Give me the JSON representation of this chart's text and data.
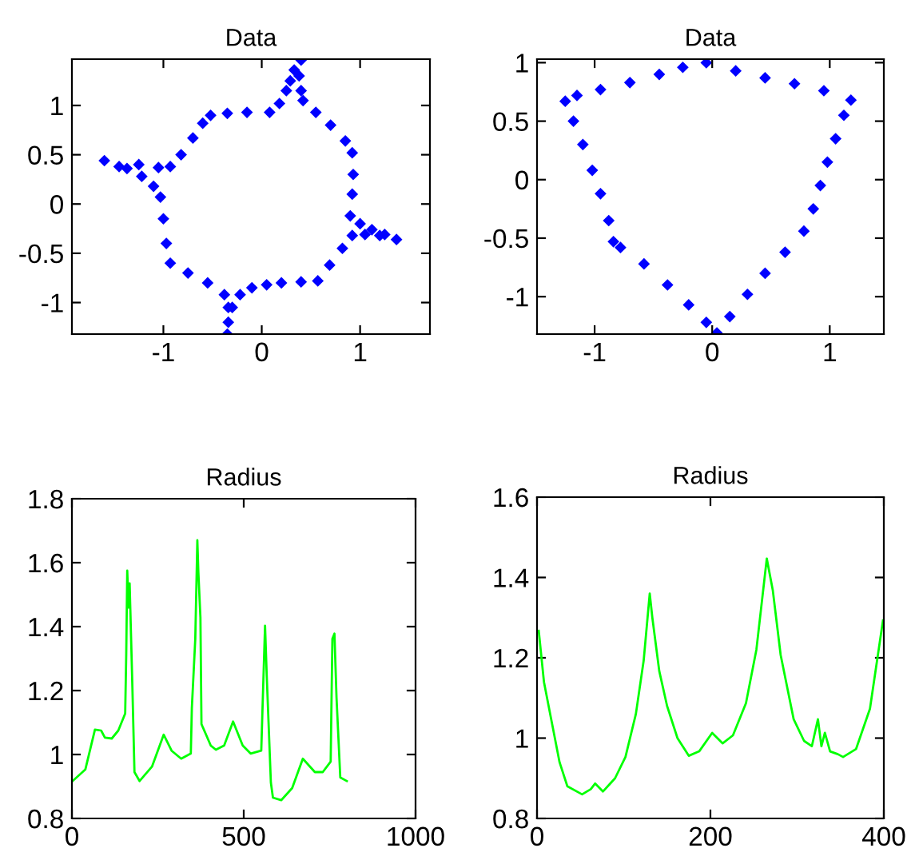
{
  "chart_data": [
    {
      "type": "scatter",
      "title": "Data",
      "marker": "diamond",
      "xlim": [
        -1.93,
        1.71
      ],
      "ylim": [
        -1.32,
        1.47
      ],
      "xticks": [
        -1,
        0,
        1
      ],
      "yticks": [
        -1,
        -0.5,
        0,
        0.5,
        1
      ],
      "series": [
        {
          "color": "#0000ff",
          "x": [
            0.4,
            0.38,
            0.4,
            0.42,
            0.55,
            0.7,
            0.85,
            0.92,
            0.93,
            0.92,
            0.9,
            1.0,
            1.12,
            1.25,
            1.37,
            1.2,
            1.05,
            0.92,
            0.82,
            0.69,
            0.57,
            0.4,
            0.2,
            0.05,
            -0.1,
            -0.22,
            -0.3,
            -0.34,
            -0.35,
            -0.34,
            -0.38,
            -0.55,
            -0.75,
            -0.93,
            -0.97,
            -1.0,
            -1.03,
            -1.1,
            -1.22,
            -1.37,
            -1.6,
            -1.45,
            -1.25,
            -1.05,
            -0.93,
            -0.82,
            -0.7,
            -0.6,
            -0.52,
            -0.35,
            -0.15,
            0.08,
            0.18,
            0.25,
            0.29,
            0.33
          ],
          "values": [
            1.46,
            1.3,
            1.15,
            1.05,
            0.93,
            0.8,
            0.64,
            0.52,
            0.3,
            0.1,
            -0.12,
            -0.2,
            -0.26,
            -0.31,
            -0.36,
            -0.32,
            -0.31,
            -0.32,
            -0.45,
            -0.62,
            -0.78,
            -0.79,
            -0.8,
            -0.82,
            -0.85,
            -0.92,
            -1.05,
            -1.2,
            -1.32,
            -1.05,
            -0.92,
            -0.8,
            -0.7,
            -0.6,
            -0.4,
            -0.15,
            0.07,
            0.18,
            0.28,
            0.36,
            0.44,
            0.38,
            0.4,
            0.37,
            0.38,
            0.5,
            0.67,
            0.82,
            0.9,
            0.92,
            0.93,
            0.93,
            1.02,
            1.15,
            1.25,
            1.36
          ]
        }
      ]
    },
    {
      "type": "scatter",
      "title": "Data",
      "marker": "diamond",
      "xlim": [
        -1.49,
        1.46
      ],
      "ylim": [
        -1.32,
        1.03
      ],
      "xticks": [
        -1,
        0,
        1
      ],
      "yticks": [
        -1,
        -0.5,
        0,
        0.5,
        1
      ],
      "series": [
        {
          "color": "#0000ff",
          "x": [
            -0.05,
            0.2,
            0.45,
            0.7,
            0.95,
            1.18,
            1.12,
            1.05,
            0.98,
            0.92,
            0.86,
            0.78,
            0.62,
            0.45,
            0.3,
            0.15,
            0.04,
            -0.05,
            -0.2,
            -0.38,
            -0.58,
            -0.78,
            -0.84,
            -0.88,
            -0.95,
            -1.02,
            -1.1,
            -1.18,
            -1.25,
            -1.15,
            -0.95,
            -0.7,
            -0.45,
            -0.25
          ],
          "values": [
            1.0,
            0.93,
            0.87,
            0.82,
            0.76,
            0.68,
            0.55,
            0.35,
            0.15,
            -0.05,
            -0.25,
            -0.44,
            -0.62,
            -0.8,
            -0.98,
            -1.17,
            -1.31,
            -1.22,
            -1.07,
            -0.9,
            -0.72,
            -0.58,
            -0.53,
            -0.35,
            -0.12,
            0.08,
            0.3,
            0.5,
            0.67,
            0.72,
            0.77,
            0.83,
            0.9,
            0.96
          ]
        }
      ]
    },
    {
      "type": "line",
      "title": "Radius",
      "xlim": [
        0,
        1000
      ],
      "ylim": [
        0.8,
        1.8
      ],
      "xticks": [
        0,
        500,
        1000
      ],
      "yticks": [
        0.8,
        1,
        1.2,
        1.4,
        1.6,
        1.8
      ],
      "series": [
        {
          "color": "#00ff00",
          "x": [
            0,
            39,
            67,
            85,
            96,
            116,
            135,
            155,
            158,
            161,
            165,
            168,
            176,
            182,
            197,
            233,
            267,
            290,
            318,
            346,
            349,
            359,
            365,
            368,
            374,
            377,
            404,
            419,
            443,
            469,
            497,
            520,
            551,
            554,
            562,
            567,
            579,
            585,
            609,
            641,
            672,
            707,
            730,
            753,
            758,
            764,
            770,
            781,
            800
          ],
          "values": [
            0.915,
            0.953,
            1.078,
            1.075,
            1.053,
            1.05,
            1.075,
            1.128,
            1.31,
            1.575,
            1.46,
            1.535,
            1.21,
            0.945,
            0.917,
            0.962,
            1.062,
            1.012,
            0.987,
            1.003,
            1.145,
            1.362,
            1.67,
            1.57,
            1.428,
            1.095,
            1.028,
            1.015,
            1.028,
            1.103,
            1.028,
            1.003,
            1.012,
            1.12,
            1.403,
            1.245,
            0.912,
            0.865,
            0.857,
            0.895,
            0.987,
            0.945,
            0.945,
            0.978,
            1.362,
            1.378,
            1.178,
            0.928,
            0.917
          ]
        }
      ]
    },
    {
      "type": "line",
      "title": "Radius",
      "xlim": [
        0,
        400
      ],
      "ylim": [
        0.8,
        1.6
      ],
      "xticks": [
        0,
        200,
        400
      ],
      "yticks": [
        0.8,
        1,
        1.2,
        1.4,
        1.6
      ],
      "series": [
        {
          "color": "#00ff00",
          "x": [
            2,
            8,
            17,
            26,
            35,
            52,
            62,
            67,
            76,
            90,
            102,
            114,
            123,
            130,
            133,
            141,
            150,
            162,
            175,
            187,
            202,
            214,
            226,
            241,
            253,
            265,
            272,
            281,
            296,
            308,
            317,
            324,
            328,
            332,
            338,
            347,
            353,
            368,
            384,
            399
          ],
          "values": [
            1.267,
            1.14,
            1.04,
            0.94,
            0.88,
            0.86,
            0.873,
            0.887,
            0.867,
            0.9,
            0.953,
            1.06,
            1.193,
            1.36,
            1.3,
            1.167,
            1.08,
            1.0,
            0.956,
            0.967,
            1.013,
            0.987,
            1.007,
            1.087,
            1.22,
            1.447,
            1.367,
            1.207,
            1.047,
            0.993,
            0.98,
            1.047,
            0.98,
            1.013,
            0.967,
            0.96,
            0.953,
            0.973,
            1.073,
            1.293
          ]
        }
      ]
    }
  ]
}
